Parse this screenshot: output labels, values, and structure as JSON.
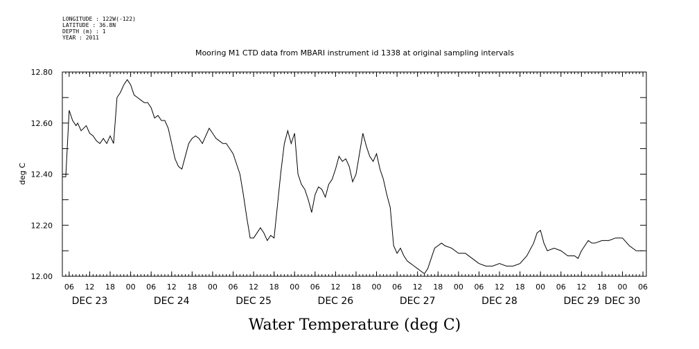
{
  "header": {
    "meta_lines": [
      "LONGITUDE : 122W(-122)",
      "LATITUDE : 36.8N",
      "DEPTH (m) : 1",
      "YEAR : 2011"
    ],
    "title": "Mooring M1 CTD data from MBARI instrument id 1338 at original sampling intervals"
  },
  "chart_data": {
    "type": "line",
    "title": "Mooring M1 CTD data from MBARI instrument id 1338 at original sampling intervals",
    "xlabel": "Water Temperature (deg C)",
    "ylabel": "deg C",
    "ylim": [
      12.0,
      12.8
    ],
    "xlim": [
      "2011-12-23T04:00",
      "2011-12-30T07:00"
    ],
    "yticks": [
      "12.00",
      "12.20",
      "12.40",
      "12.60",
      "12.80"
    ],
    "yticks_values": [
      12.0,
      12.2,
      12.4,
      12.6,
      12.8
    ],
    "xtick_hour_labels": [
      "06",
      "12",
      "18",
      "00",
      "06",
      "12",
      "18",
      "00",
      "06",
      "12",
      "18",
      "00",
      "06",
      "12",
      "18",
      "00",
      "06",
      "12",
      "18",
      "00",
      "06",
      "12",
      "18",
      "00",
      "06",
      "12",
      "18",
      "00",
      "06",
      "12",
      "18",
      "00",
      "06"
    ],
    "xtick_times": [
      "2011-12-23T06:00",
      "2011-12-23T12:00",
      "2011-12-23T18:00",
      "2011-12-24T00:00",
      "2011-12-24T06:00",
      "2011-12-24T12:00",
      "2011-12-24T18:00",
      "2011-12-25T00:00",
      "2011-12-25T06:00",
      "2011-12-25T12:00",
      "2011-12-25T18:00",
      "2011-12-26T00:00",
      "2011-12-26T06:00",
      "2011-12-26T12:00",
      "2011-12-26T18:00",
      "2011-12-27T00:00",
      "2011-12-27T06:00",
      "2011-12-27T12:00",
      "2011-12-27T18:00",
      "2011-12-28T00:00",
      "2011-12-28T06:00",
      "2011-12-28T12:00",
      "2011-12-28T18:00",
      "2011-12-29T00:00",
      "2011-12-29T06:00",
      "2011-12-29T12:00",
      "2011-12-29T18:00",
      "2011-12-30T00:00",
      "2011-12-30T06:00",
      "2011-12-30T12:00",
      "2011-12-30T18:00",
      "2011-12-31T00:00",
      "2011-12-31T06:00"
    ],
    "day_labels": [
      {
        "label": "DEC 23",
        "time": "2011-12-23T12:00"
      },
      {
        "label": "DEC 24",
        "time": "2011-12-24T12:00"
      },
      {
        "label": "DEC 25",
        "time": "2011-12-25T12:00"
      },
      {
        "label": "DEC 26",
        "time": "2011-12-26T12:00"
      },
      {
        "label": "DEC 27",
        "time": "2011-12-27T12:00"
      },
      {
        "label": "DEC 28",
        "time": "2011-12-28T12:00"
      },
      {
        "label": "DEC 29",
        "time": "2011-12-29T12:00"
      },
      {
        "label": "DEC 30",
        "time": "2011-12-30T00:00"
      }
    ],
    "series": [
      {
        "color": "#000000",
        "x": [
          "2011-12-23T04:00",
          "2011-12-23T05:00",
          "2011-12-23T06:00",
          "2011-12-23T07:00",
          "2011-12-23T08:00",
          "2011-12-23T08:30",
          "2011-12-23T09:30",
          "2011-12-23T11:00",
          "2011-12-23T12:00",
          "2011-12-23T13:00",
          "2011-12-23T14:00",
          "2011-12-23T15:00",
          "2011-12-23T16:00",
          "2011-12-23T17:00",
          "2011-12-23T18:00",
          "2011-12-23T19:00",
          "2011-12-23T20:00",
          "2011-12-23T21:00",
          "2011-12-23T22:00",
          "2011-12-23T23:00",
          "2011-12-24T00:00",
          "2011-12-24T01:00",
          "2011-12-24T02:00",
          "2011-12-24T03:00",
          "2011-12-24T04:00",
          "2011-12-24T05:00",
          "2011-12-24T06:00",
          "2011-12-24T07:00",
          "2011-12-24T08:00",
          "2011-12-24T09:00",
          "2011-12-24T10:00",
          "2011-12-24T11:00",
          "2011-12-24T12:00",
          "2011-12-24T13:00",
          "2011-12-24T14:00",
          "2011-12-24T15:00",
          "2011-12-24T16:00",
          "2011-12-24T17:00",
          "2011-12-24T18:00",
          "2011-12-24T19:00",
          "2011-12-24T20:00",
          "2011-12-24T21:00",
          "2011-12-24T22:00",
          "2011-12-24T23:00",
          "2011-12-25T00:00",
          "2011-12-25T01:00",
          "2011-12-25T02:00",
          "2011-12-25T03:00",
          "2011-12-25T04:00",
          "2011-12-25T05:00",
          "2011-12-25T06:00",
          "2011-12-25T07:00",
          "2011-12-25T08:00",
          "2011-12-25T09:00",
          "2011-12-25T10:00",
          "2011-12-25T11:00",
          "2011-12-25T12:00",
          "2011-12-25T13:00",
          "2011-12-25T14:00",
          "2011-12-25T15:00",
          "2011-12-25T16:00",
          "2011-12-25T17:00",
          "2011-12-25T18:00",
          "2011-12-25T19:00",
          "2011-12-25T20:00",
          "2011-12-25T21:00",
          "2011-12-25T22:00",
          "2011-12-25T23:00",
          "2011-12-26T00:00",
          "2011-12-26T01:00",
          "2011-12-26T02:00",
          "2011-12-26T03:00",
          "2011-12-26T04:00",
          "2011-12-26T05:00",
          "2011-12-26T06:00",
          "2011-12-26T07:00",
          "2011-12-26T08:00",
          "2011-12-26T09:00",
          "2011-12-26T10:00",
          "2011-12-26T11:00",
          "2011-12-26T12:00",
          "2011-12-26T13:00",
          "2011-12-26T14:00",
          "2011-12-26T15:00",
          "2011-12-26T16:00",
          "2011-12-26T17:00",
          "2011-12-26T18:00",
          "2011-12-26T19:00",
          "2011-12-26T20:00",
          "2011-12-26T21:00",
          "2011-12-26T22:00",
          "2011-12-26T23:00",
          "2011-12-27T00:00",
          "2011-12-27T01:00",
          "2011-12-27T02:00",
          "2011-12-27T03:00",
          "2011-12-27T04:00",
          "2011-12-27T05:00",
          "2011-12-27T06:00",
          "2011-12-27T07:00",
          "2011-12-27T08:00",
          "2011-12-27T09:00",
          "2011-12-27T10:00",
          "2011-12-27T11:00",
          "2011-12-27T12:00",
          "2011-12-27T13:00",
          "2011-12-27T14:00",
          "2011-12-27T15:00",
          "2011-12-27T16:00",
          "2011-12-27T17:00",
          "2011-12-27T18:00",
          "2011-12-27T19:00",
          "2011-12-27T20:00",
          "2011-12-27T22:00",
          "2011-12-28T00:00",
          "2011-12-28T02:00",
          "2011-12-28T04:00",
          "2011-12-28T06:00",
          "2011-12-28T08:00",
          "2011-12-28T10:00",
          "2011-12-28T12:00",
          "2011-12-28T14:00",
          "2011-12-28T16:00",
          "2011-12-28T18:00",
          "2011-12-28T20:00",
          "2011-12-28T22:00",
          "2011-12-28T23:00",
          "2011-12-29T00:00",
          "2011-12-29T01:00",
          "2011-12-29T02:00",
          "2011-12-29T04:00",
          "2011-12-29T06:00",
          "2011-12-29T08:00",
          "2011-12-29T10:00",
          "2011-12-29T11:00",
          "2011-12-29T12:00",
          "2011-12-29T13:00",
          "2011-12-29T14:00",
          "2011-12-29T15:00",
          "2011-12-29T16:00",
          "2011-12-29T18:00",
          "2011-12-29T20:00",
          "2011-12-29T22:00",
          "2011-12-30T00:00",
          "2011-12-30T02:00",
          "2011-12-30T04:00",
          "2011-12-30T05:00",
          "2011-12-30T06:00"
        ],
        "y": [
          12.39,
          12.39,
          12.65,
          12.61,
          12.59,
          12.6,
          12.57,
          12.59,
          12.56,
          12.55,
          12.53,
          12.52,
          12.54,
          12.52,
          12.55,
          12.52,
          12.7,
          12.72,
          12.75,
          12.77,
          12.75,
          12.71,
          12.7,
          12.69,
          12.68,
          12.68,
          12.66,
          12.62,
          12.63,
          12.61,
          12.61,
          12.58,
          12.52,
          12.46,
          12.43,
          12.42,
          12.47,
          12.52,
          12.54,
          12.55,
          12.54,
          12.52,
          12.55,
          12.58,
          12.56,
          12.54,
          12.53,
          12.52,
          12.52,
          12.5,
          12.48,
          12.44,
          12.4,
          12.32,
          12.23,
          12.15,
          12.15,
          12.17,
          12.19,
          12.17,
          12.14,
          12.16,
          12.15,
          12.28,
          12.41,
          12.52,
          12.57,
          12.52,
          12.56,
          12.4,
          12.36,
          12.34,
          12.3,
          12.25,
          12.32,
          12.35,
          12.34,
          12.31,
          12.36,
          12.38,
          12.42,
          12.47,
          12.45,
          12.46,
          12.43,
          12.37,
          12.4,
          12.48,
          12.56,
          12.51,
          12.47,
          12.45,
          12.48,
          12.42,
          12.38,
          12.32,
          12.27,
          12.12,
          12.09,
          12.11,
          12.08,
          12.06,
          12.05,
          12.04,
          12.03,
          12.02,
          12.01,
          12.03,
          12.07,
          12.11,
          12.12,
          12.13,
          12.12,
          12.11,
          12.09,
          12.09,
          12.07,
          12.05,
          12.04,
          12.04,
          12.05,
          12.04,
          12.04,
          12.05,
          12.08,
          12.13,
          12.17,
          12.18,
          12.13,
          12.1,
          12.11,
          12.1,
          12.08,
          12.08,
          12.07,
          12.1,
          12.12,
          12.14,
          12.13,
          12.13,
          12.14,
          12.14,
          12.15,
          12.15,
          12.12,
          12.1,
          12.1,
          12.1
        ]
      }
    ]
  }
}
